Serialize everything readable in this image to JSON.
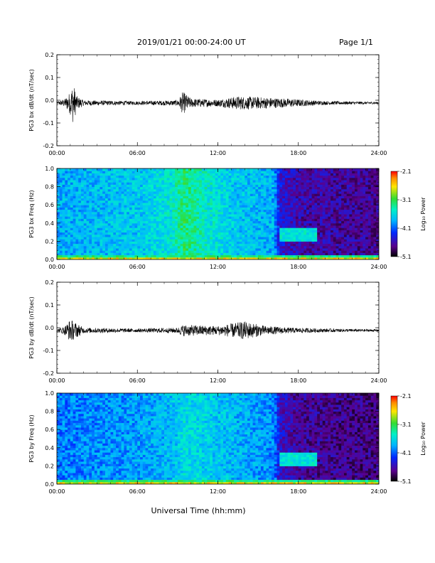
{
  "header": {
    "title": "2019/01/21   00:00-24:00 UT",
    "page": "Page 1/1"
  },
  "x_axis": {
    "label": "Universal Time (hh:mm)",
    "ticks": [
      "00:00",
      "06:00",
      "12:00",
      "18:00",
      "24:00"
    ],
    "range_hours": [
      0,
      24
    ]
  },
  "chart_data": [
    {
      "type": "line",
      "ylabel": "PG3 bx dB/dt (nT/sec)",
      "ylim": [
        -0.2,
        0.2
      ],
      "yticks": [
        "0.2",
        "0.1",
        "0.0",
        "-0.1",
        "-0.2"
      ],
      "baseline": -0.012,
      "activity": [
        {
          "t": 0.0,
          "amp": 0.006
        },
        {
          "t": 0.6,
          "amp": 0.018
        },
        {
          "t": 1.0,
          "amp": 0.05
        },
        {
          "t": 1.2,
          "amp": 0.09
        },
        {
          "t": 1.5,
          "amp": 0.03
        },
        {
          "t": 2.0,
          "amp": 0.012
        },
        {
          "t": 6.0,
          "amp": 0.008
        },
        {
          "t": 9.0,
          "amp": 0.012
        },
        {
          "t": 9.4,
          "amp": 0.05
        },
        {
          "t": 10.0,
          "amp": 0.02
        },
        {
          "t": 12.0,
          "amp": 0.015
        },
        {
          "t": 13.5,
          "amp": 0.03
        },
        {
          "t": 15.5,
          "amp": 0.025
        },
        {
          "t": 17.5,
          "amp": 0.018
        },
        {
          "t": 20.0,
          "amp": 0.008
        },
        {
          "t": 24.0,
          "amp": 0.005
        }
      ]
    },
    {
      "type": "heatmap",
      "ylabel": "PG3 bx Freq (Hz)",
      "ylim": [
        0.0,
        1.0
      ],
      "yticks": [
        "1.0",
        "0.8",
        "0.6",
        "0.4",
        "0.2",
        "0.0"
      ],
      "colorbar": {
        "label": "Log₁₀ Power",
        "ticks": [
          "-2.1",
          "-3.1",
          "-4.1",
          "-5.1"
        ],
        "range": [
          -5.1,
          -2.1
        ]
      },
      "levels": [
        {
          "t": 0,
          "v": 0.42
        },
        {
          "t": 3,
          "v": 0.44
        },
        {
          "t": 6,
          "v": 0.46
        },
        {
          "t": 8.5,
          "v": 0.52
        },
        {
          "t": 9.5,
          "v": 0.62
        },
        {
          "t": 11,
          "v": 0.55
        },
        {
          "t": 13,
          "v": 0.47
        },
        {
          "t": 16.2,
          "v": 0.42
        },
        {
          "t": 16.6,
          "v": 0.22
        },
        {
          "t": 18,
          "v": 0.16
        },
        {
          "t": 24,
          "v": 0.13
        }
      ]
    },
    {
      "type": "line",
      "ylabel": "PG3 by dB/dt (nT/sec)",
      "ylim": [
        -0.2,
        0.2
      ],
      "yticks": [
        "0.2",
        "0.1",
        "0.0",
        "-0.1",
        "-0.2"
      ],
      "baseline": -0.012,
      "activity": [
        {
          "t": 0.0,
          "amp": 0.006
        },
        {
          "t": 0.6,
          "amp": 0.02
        },
        {
          "t": 1.0,
          "amp": 0.05
        },
        {
          "t": 1.4,
          "amp": 0.035
        },
        {
          "t": 2.0,
          "amp": 0.012
        },
        {
          "t": 6.0,
          "amp": 0.008
        },
        {
          "t": 9.0,
          "amp": 0.012
        },
        {
          "t": 9.4,
          "amp": 0.025
        },
        {
          "t": 12.0,
          "amp": 0.02
        },
        {
          "t": 14.0,
          "amp": 0.04
        },
        {
          "t": 15.5,
          "amp": 0.02
        },
        {
          "t": 17.5,
          "amp": 0.012
        },
        {
          "t": 20.0,
          "amp": 0.008
        },
        {
          "t": 24.0,
          "amp": 0.005
        }
      ]
    },
    {
      "type": "heatmap",
      "ylabel": "PG3 by Freq (Hz)",
      "ylim": [
        0.0,
        1.0
      ],
      "yticks": [
        "1.0",
        "0.8",
        "0.6",
        "0.4",
        "0.2",
        "0.0"
      ],
      "colorbar": {
        "label": "Log₁₀ Power",
        "ticks": [
          "-2.1",
          "-3.1",
          "-4.1",
          "-5.1"
        ],
        "range": [
          -5.1,
          -2.1
        ]
      },
      "levels": [
        {
          "t": 0,
          "v": 0.36
        },
        {
          "t": 3,
          "v": 0.38
        },
        {
          "t": 6,
          "v": 0.4
        },
        {
          "t": 8.5,
          "v": 0.44
        },
        {
          "t": 9.5,
          "v": 0.5
        },
        {
          "t": 11,
          "v": 0.48
        },
        {
          "t": 13,
          "v": 0.44
        },
        {
          "t": 16.2,
          "v": 0.38
        },
        {
          "t": 16.6,
          "v": 0.2
        },
        {
          "t": 18,
          "v": 0.14
        },
        {
          "t": 24,
          "v": 0.11
        }
      ]
    }
  ]
}
